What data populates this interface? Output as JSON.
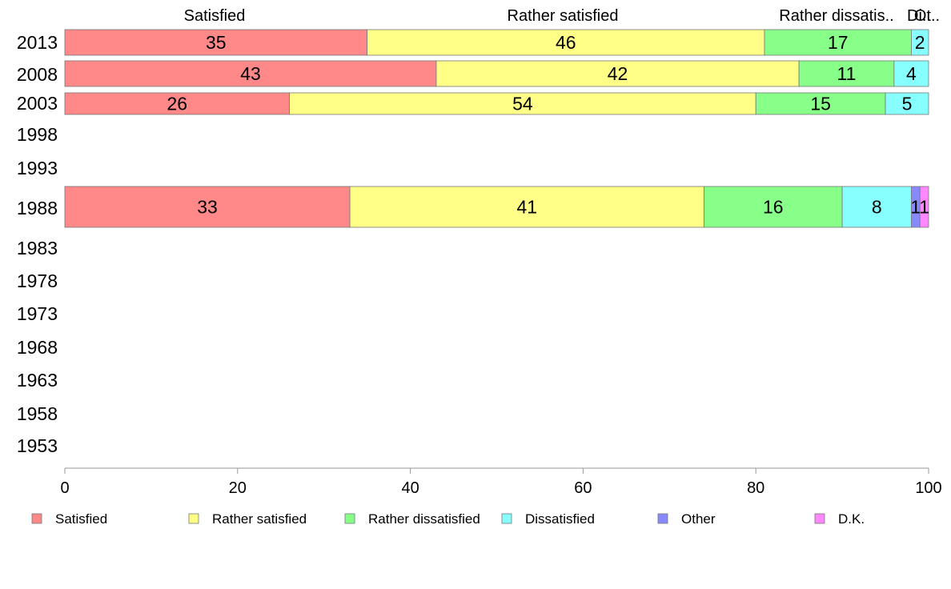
{
  "chart_data": {
    "type": "bar",
    "orientation": "horizontal",
    "stacked": true,
    "categories": [
      "2013",
      "2008",
      "2003",
      "1998",
      "1993",
      "1988",
      "1983",
      "1978",
      "1973",
      "1968",
      "1963",
      "1958",
      "1953"
    ],
    "series": [
      {
        "name": "Satisfied",
        "color": "#ff8888",
        "values": [
          35,
          43,
          26,
          null,
          null,
          33,
          null,
          null,
          null,
          null,
          null,
          null,
          null
        ]
      },
      {
        "name": "Rather satisfied",
        "color": "#ffff88",
        "values": [
          46,
          42,
          54,
          null,
          null,
          41,
          null,
          null,
          null,
          null,
          null,
          null,
          null
        ]
      },
      {
        "name": "Rather dissatisfied",
        "color": "#88ff88",
        "values": [
          17,
          11,
          15,
          null,
          null,
          16,
          null,
          null,
          null,
          null,
          null,
          null,
          null
        ]
      },
      {
        "name": "Dissatisfied",
        "color": "#88ffff",
        "values": [
          2,
          4,
          5,
          null,
          null,
          8,
          null,
          null,
          null,
          null,
          null,
          null,
          null
        ]
      },
      {
        "name": "Other",
        "color": "#8888ff",
        "values": [
          null,
          null,
          null,
          null,
          null,
          1,
          null,
          null,
          null,
          null,
          null,
          null,
          null
        ]
      },
      {
        "name": "D.K.",
        "color": "#ff88ff",
        "values": [
          null,
          null,
          null,
          null,
          null,
          1,
          null,
          null,
          null,
          null,
          null,
          null,
          null
        ]
      }
    ],
    "top_labels": [
      "Satisfied",
      "Rather satisfied",
      "Rather dissatis..",
      "Di..",
      "Ot.."
    ],
    "xlim": [
      0,
      100
    ],
    "xticks": [
      0,
      20,
      40,
      60,
      80,
      100
    ],
    "grid": false,
    "legend_position": "bottom"
  }
}
